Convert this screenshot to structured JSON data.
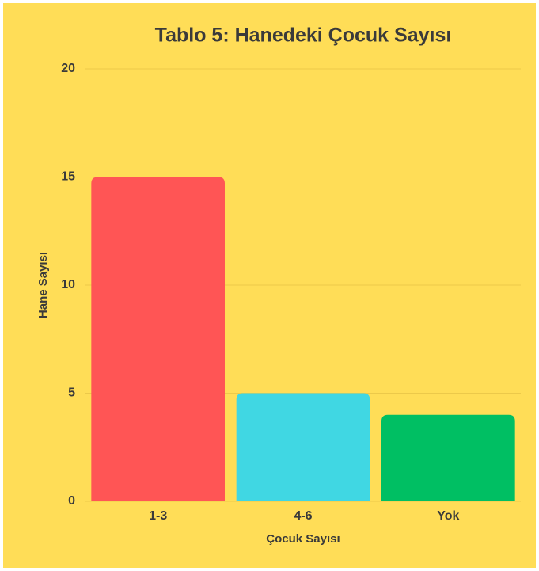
{
  "chart_data": {
    "type": "bar",
    "title": "Tablo 5: Hanedeki Çocuk Sayısı",
    "x_label": "Çocuk Sayısı",
    "y_label": "Hane Sayısı",
    "categories": [
      "1-3",
      "4-6",
      "Yok"
    ],
    "values": [
      15,
      5,
      4
    ],
    "colors": [
      "#ff5555",
      "#40d7e3",
      "#00bf63"
    ],
    "ylim": [
      0,
      20
    ],
    "yticks": [
      0,
      5,
      10,
      15,
      20
    ],
    "grid": true
  }
}
